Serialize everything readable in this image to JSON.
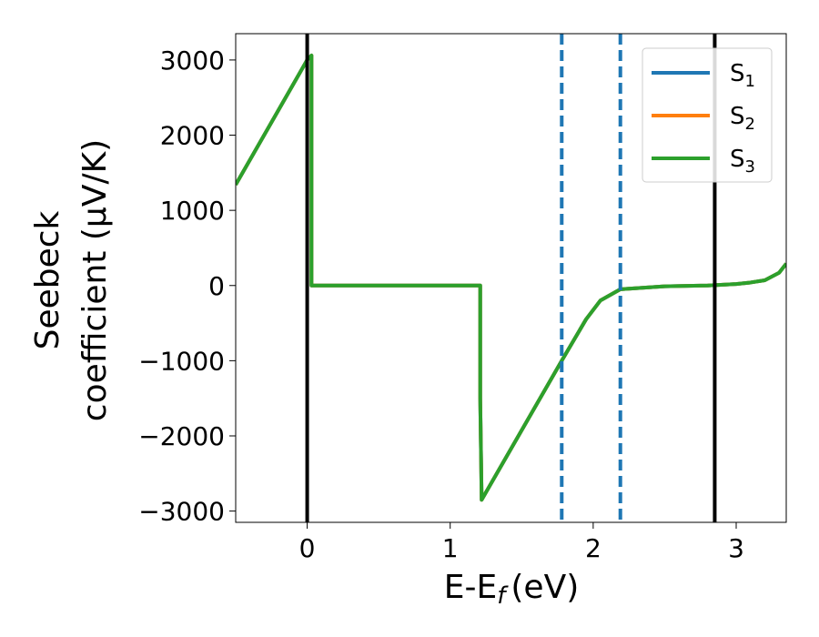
{
  "chart_data": {
    "type": "line",
    "xlabel": "E-E",
    "xlabel_sub": "f",
    "xlabel_unit": "(eV)",
    "ylabel_line1": "Seebeck",
    "ylabel_line2": "coefficient  (μV/K)",
    "xlim": [
      -0.5,
      3.35
    ],
    "ylim": [
      -3150,
      3350
    ],
    "x_ticks": [
      0,
      1,
      2,
      3
    ],
    "x_tick_labels": [
      "0",
      "1",
      "2",
      "3"
    ],
    "y_ticks": [
      3000,
      2000,
      1000,
      0,
      -1000,
      -2000,
      -3000
    ],
    "y_tick_labels": [
      "3000",
      "2000",
      "1000",
      "0",
      "−1000",
      "−2000",
      "−3000"
    ],
    "grid": false,
    "legend_position": "top-right",
    "series": [
      {
        "name": "S",
        "sub": "1",
        "color": "#1f77b4",
        "x": [
          -0.5,
          0.0,
          0.03,
          0.03,
          1.21,
          1.21,
          1.22,
          1.78,
          1.95,
          2.05,
          2.19,
          2.5,
          2.8,
          3.0,
          3.1,
          3.2,
          3.3,
          3.35
        ],
        "y": [
          1340,
          3000,
          3060,
          0,
          0,
          -1500,
          -2850,
          -1000,
          -450,
          -200,
          -50,
          -10,
          0,
          20,
          40,
          70,
          170,
          290
        ]
      },
      {
        "name": "S",
        "sub": "2",
        "color": "#ff7f0e",
        "x": [
          -0.5,
          0.0,
          0.03,
          0.03,
          1.21,
          1.21,
          1.22,
          1.78,
          1.95,
          2.05,
          2.19,
          2.5,
          2.8,
          3.0,
          3.1,
          3.2,
          3.3,
          3.35
        ],
        "y": [
          1340,
          3000,
          3060,
          0,
          0,
          -1500,
          -2850,
          -1000,
          -450,
          -200,
          -50,
          -10,
          0,
          20,
          40,
          70,
          170,
          290
        ]
      },
      {
        "name": "S",
        "sub": "3",
        "color": "#2ca02c",
        "x": [
          -0.5,
          0.0,
          0.03,
          0.03,
          1.21,
          1.21,
          1.22,
          1.78,
          1.95,
          2.05,
          2.19,
          2.5,
          2.8,
          3.0,
          3.1,
          3.2,
          3.3,
          3.35
        ],
        "y": [
          1340,
          3000,
          3060,
          0,
          0,
          -1500,
          -2850,
          -1000,
          -450,
          -200,
          -50,
          -10,
          0,
          20,
          40,
          70,
          170,
          290
        ]
      }
    ],
    "vlines": [
      {
        "x": 0.0,
        "style": "solid",
        "color": "#000000"
      },
      {
        "x": 2.85,
        "style": "solid",
        "color": "#000000"
      },
      {
        "x": 1.78,
        "style": "dashed",
        "color": "#1f77b4"
      },
      {
        "x": 2.19,
        "style": "dashed",
        "color": "#1f77b4"
      }
    ]
  }
}
